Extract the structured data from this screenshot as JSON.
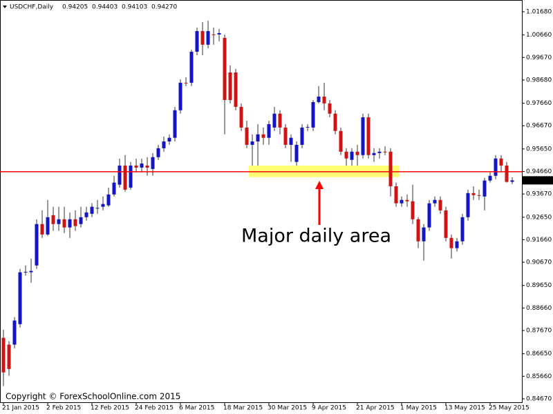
{
  "chart_data": {
    "type": "candlestick",
    "title": "USDCHF,Daily",
    "title_values": [
      "0.94205",
      "0.94403",
      "0.94103",
      "0.94270"
    ],
    "categories": [
      "21 Jan 2015",
      null,
      null,
      null,
      null,
      null,
      null,
      null,
      "2 Feb 2015",
      null,
      null,
      null,
      null,
      null,
      null,
      null,
      "12 Feb 2015",
      null,
      null,
      null,
      null,
      null,
      null,
      null,
      "24 Feb 2015",
      null,
      null,
      null,
      null,
      null,
      null,
      null,
      "6 Mar 2015",
      null,
      null,
      null,
      null,
      null,
      null,
      null,
      "18 Mar 2015",
      null,
      null,
      null,
      null,
      null,
      null,
      null,
      "30 Mar 2015",
      null,
      null,
      null,
      null,
      null,
      null,
      null,
      "9 Apr 2015",
      null,
      null,
      null,
      null,
      null,
      null,
      null,
      "21 Apr 2015",
      null,
      null,
      null,
      null,
      null,
      null,
      null,
      "1 May 2015",
      null,
      null,
      null,
      null,
      null,
      null,
      null,
      "13 May 2015",
      null,
      null,
      null,
      null,
      null,
      null,
      null,
      "25 May 2015",
      null,
      null,
      null,
      null
    ],
    "open": [
      0.8735,
      0.8705,
      0.8705,
      0.8795,
      0.9023,
      0.9023,
      0.9053,
      0.9235,
      0.9189,
      0.9274,
      0.9235,
      0.9256,
      0.922,
      0.9256,
      0.9235,
      0.9265,
      0.928,
      0.9304,
      0.9311,
      0.9317,
      0.9365,
      0.9408,
      0.9492,
      0.9395,
      0.9492,
      0.9483,
      0.9492,
      0.9477,
      0.9529,
      0.9568,
      0.9598,
      0.9614,
      0.9735,
      0.9856,
      0.9856,
      0.9992,
      1.0083,
      1.0023,
      1.0068,
      1.0068,
      1.0053,
      0.9901,
      0.9901,
      0.975,
      0.9659,
      0.9583,
      0.9598,
      0.9629,
      0.9614,
      0.9659,
      0.972,
      0.9659,
      0.9583,
      0.9508,
      0.9583,
      0.9659,
      0.9659,
      0.9771,
      0.9795,
      0.9765,
      0.972,
      0.9644,
      0.9553,
      0.9517,
      0.9553,
      0.9538,
      0.9704,
      0.9538,
      0.9547,
      0.9553,
      0.9553,
      0.9401,
      0.9326,
      0.9341,
      0.9335,
      0.9256,
      0.9159,
      0.922,
      0.9326,
      0.9341,
      0.9295,
      0.9174,
      0.9129,
      0.9159,
      0.9265,
      0.9371,
      0.9362,
      0.9356,
      0.9426,
      0.9447,
      0.9523,
      0.9492,
      0.94205
    ],
    "high": [
      0.8771,
      0.872,
      0.8826,
      0.9038,
      0.9053,
      0.9083,
      0.9256,
      0.9295,
      0.9341,
      0.9311,
      0.9311,
      0.9311,
      0.9286,
      0.9295,
      0.9311,
      0.9311,
      0.9326,
      0.9341,
      0.9356,
      0.9395,
      0.9447,
      0.9523,
      0.9538,
      0.9508,
      0.9523,
      0.9523,
      0.9529,
      0.9547,
      0.9583,
      0.962,
      0.9629,
      0.975,
      0.9871,
      0.988,
      1.0001,
      1.0098,
      1.0123,
      1.0129,
      1.0098,
      1.0092,
      1.0068,
      0.9932,
      0.9917,
      0.9765,
      0.9689,
      0.9629,
      0.9674,
      0.9659,
      0.9689,
      0.975,
      0.9735,
      0.9674,
      0.9629,
      0.9598,
      0.9674,
      0.9674,
      0.978,
      0.9841,
      0.9856,
      0.978,
      0.9735,
      0.9659,
      0.9568,
      0.9568,
      0.9583,
      0.972,
      0.972,
      0.9568,
      0.9568,
      0.9577,
      0.9568,
      0.9417,
      0.9356,
      0.9365,
      0.9408,
      0.9265,
      0.9235,
      0.9341,
      0.9356,
      0.9356,
      0.9311,
      0.9189,
      0.9174,
      0.928,
      0.9386,
      0.9401,
      0.9386,
      0.9438,
      0.9462,
      0.9538,
      0.9538,
      0.9508,
      0.94403
    ],
    "low": [
      0.8523,
      0.8568,
      0.8689,
      0.878,
      0.9008,
      0.8977,
      0.9038,
      0.9174,
      0.9183,
      0.9205,
      0.9205,
      0.9195,
      0.9174,
      0.9205,
      0.922,
      0.925,
      0.9265,
      0.928,
      0.9295,
      0.9311,
      0.9356,
      0.9395,
      0.9377,
      0.9386,
      0.9462,
      0.9462,
      0.9447,
      0.9447,
      0.9517,
      0.9553,
      0.9583,
      0.9598,
      0.972,
      0.9841,
      0.9841,
      0.9977,
      0.9977,
      1.0007,
      1.0023,
      1.0038,
      0.9629,
      0.9765,
      0.9735,
      0.9644,
      0.9568,
      0.9492,
      0.9492,
      0.9583,
      0.9583,
      0.9644,
      0.9629,
      0.9568,
      0.9508,
      0.9492,
      0.9568,
      0.9644,
      0.9644,
      0.9765,
      0.9735,
      0.9704,
      0.9629,
      0.9538,
      0.9492,
      0.9492,
      0.9492,
      0.9523,
      0.9523,
      0.9508,
      0.9523,
      0.9538,
      0.9356,
      0.9311,
      0.9311,
      0.9311,
      0.9235,
      0.9129,
      0.9074,
      0.9205,
      0.9311,
      0.928,
      0.9159,
      0.9083,
      0.9114,
      0.9144,
      0.925,
      0.9341,
      0.9341,
      0.9295,
      0.9417,
      0.9432,
      0.9462,
      0.9417,
      0.94103
    ],
    "close": [
      0.8583,
      0.8598,
      0.8811,
      0.9023,
      0.9025,
      0.9029,
      0.9235,
      0.9189,
      0.9265,
      0.9235,
      0.9256,
      0.922,
      0.9256,
      0.9226,
      0.9265,
      0.9286,
      0.9311,
      0.9306,
      0.9323,
      0.9365,
      0.9417,
      0.9492,
      0.9386,
      0.9492,
      0.9483,
      0.9501,
      0.9483,
      0.9529,
      0.9568,
      0.9598,
      0.9614,
      0.9735,
      0.9856,
      0.9853,
      0.9992,
      1.0083,
      1.0023,
      1.0083,
      1.0065,
      1.0074,
      0.978,
      0.978,
      0.975,
      0.9659,
      0.9583,
      0.9598,
      0.9629,
      0.9614,
      0.9674,
      0.972,
      0.9659,
      0.9583,
      0.9614,
      0.9583,
      0.9659,
      0.9662,
      0.9771,
      0.9795,
      0.9765,
      0.972,
      0.9644,
      0.9553,
      0.9523,
      0.9553,
      0.9538,
      0.9704,
      0.9538,
      0.9547,
      0.9553,
      0.955,
      0.9401,
      0.9326,
      0.9341,
      0.9335,
      0.9256,
      0.9159,
      0.922,
      0.9326,
      0.9341,
      0.9295,
      0.9174,
      0.9129,
      0.9159,
      0.9265,
      0.9371,
      0.9362,
      0.936,
      0.9426,
      0.9447,
      0.9523,
      0.9492,
      0.94205,
      0.9427
    ],
    "up_color": "#1414c8",
    "down_color": "#d01414",
    "wick_color": "#333333",
    "ylim": [
      0.84518,
      1.02195
    ],
    "yticks": [
      {
        "value": 1.0168,
        "label": "1.01680"
      },
      {
        "value": 1.0066,
        "label": "1.00660"
      },
      {
        "value": 0.9967,
        "label": "0.99670"
      },
      {
        "value": 0.9868,
        "label": "0.98680"
      },
      {
        "value": 0.9766,
        "label": "0.97660"
      },
      {
        "value": 0.9667,
        "label": "0.96670"
      },
      {
        "value": 0.9565,
        "label": "0.95650"
      },
      {
        "value": 0.9466,
        "label": "0.94660"
      },
      {
        "value": 0.9367,
        "label": "0.93670"
      },
      {
        "value": 0.9265,
        "label": "0.92650"
      },
      {
        "value": 0.9166,
        "label": "0.91660"
      },
      {
        "value": 0.9067,
        "label": "0.90670"
      },
      {
        "value": 0.8965,
        "label": "0.89650"
      },
      {
        "value": 0.8866,
        "label": "0.88660"
      },
      {
        "value": 0.8767,
        "label": "0.87670"
      },
      {
        "value": 0.8665,
        "label": "0.86650"
      },
      {
        "value": 0.8566,
        "label": "0.85660"
      },
      {
        "value": 0.8467,
        "label": "0.84670"
      }
    ],
    "last_price": {
      "value": 0.9427,
      "label": "0.94270"
    },
    "level_line": 0.9465,
    "level_color": "#ff0000",
    "zone": [
      0.9441,
      0.9492
    ],
    "zone_color": "#ffff66",
    "annotation": "Major daily area",
    "annotation_color": "#ff0000",
    "copyright": "Copyright © ForexSchoolOnline.com 2015"
  }
}
